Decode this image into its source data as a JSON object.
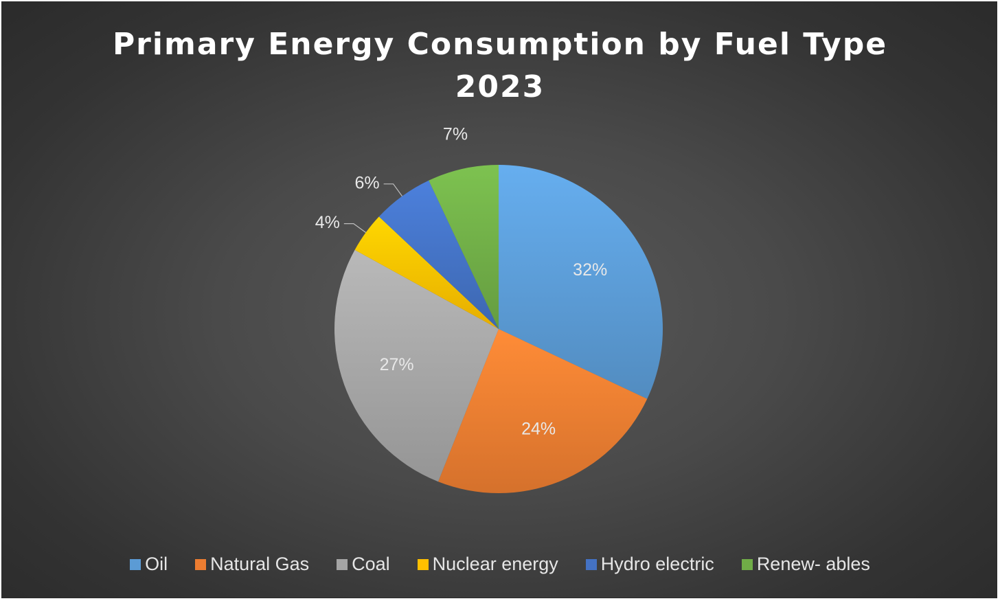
{
  "chart_data": {
    "type": "pie",
    "title": "Primary Energy Consumption by Fuel Type",
    "subtitle": "2023",
    "categories": [
      "Oil",
      "Natural Gas",
      "Coal",
      "Nuclear energy",
      "Hydro electric",
      "Renew- ables"
    ],
    "values": [
      32,
      24,
      27,
      4,
      6,
      7
    ],
    "labels": [
      "32%",
      "24%",
      "27%",
      "4%",
      "6%",
      "7%"
    ],
    "colors": [
      "#5b9bd5",
      "#ed7d31",
      "#a5a5a5",
      "#ffc000",
      "#4472c4",
      "#70ad47"
    ],
    "start_angle_deg": 0,
    "direction": "clockwise",
    "legend_position": "bottom"
  }
}
